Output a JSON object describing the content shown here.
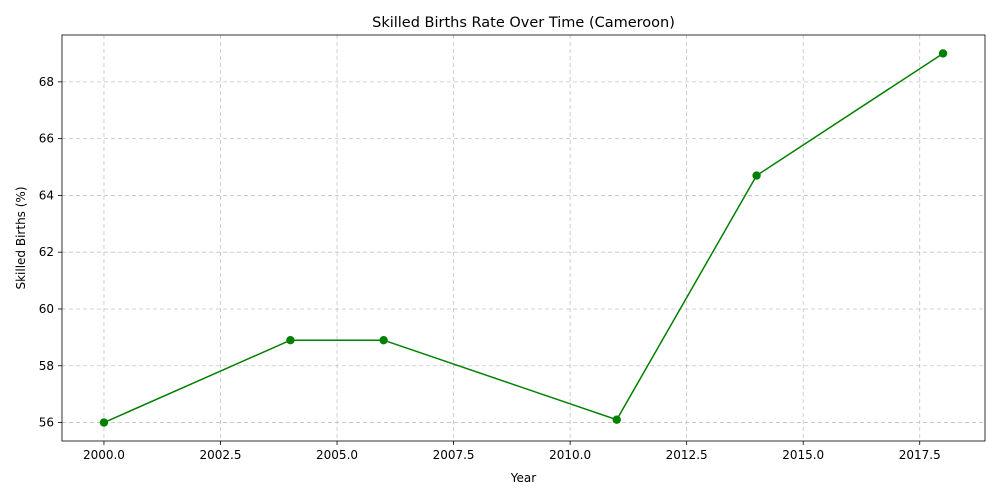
{
  "chart_data": {
    "type": "line",
    "title": "Skilled Births Rate Over Time (Cameroon)",
    "xlabel": "Year",
    "ylabel": "Skilled Births (%)",
    "xlim": [
      1999.1,
      2018.9
    ],
    "ylim": [
      55.35,
      69.65
    ],
    "xticks": [
      2000,
      2002.5,
      2005,
      2007.5,
      2010,
      2012.5,
      2015,
      2017.5
    ],
    "xtick_labels": [
      "2000.0",
      "2002.5",
      "2005.0",
      "2007.5",
      "2010.0",
      "2012.5",
      "2015.0",
      "2017.5"
    ],
    "yticks": [
      56,
      58,
      60,
      62,
      64,
      66,
      68
    ],
    "ytick_labels": [
      "56",
      "58",
      "60",
      "62",
      "64",
      "66",
      "68"
    ],
    "grid": true,
    "series": [
      {
        "color": "#008000",
        "marker": "circle",
        "x": [
          2000,
          2004,
          2006,
          2011,
          2014,
          2018
        ],
        "y": [
          56.0,
          58.9,
          58.9,
          56.1,
          64.7,
          69.0
        ]
      }
    ]
  }
}
